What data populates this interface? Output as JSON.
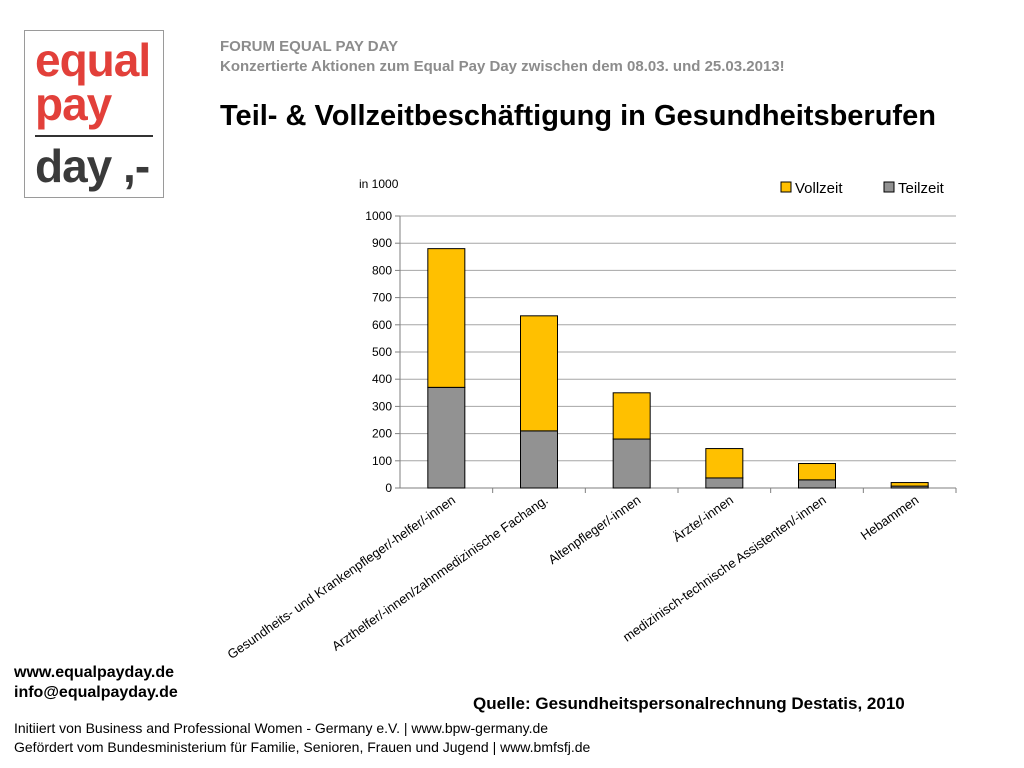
{
  "logo": {
    "line1": "equal",
    "line2": "pay",
    "line3": "day ,-"
  },
  "header": {
    "org": "FORUM EQUAL PAY DAY",
    "campaign": "Konzertierte Aktionen zum Equal Pay Day zwischen dem 08.03. und 25.03.2013!",
    "title": "Teil- & Vollzeitbeschäftigung in Gesundheitsberufen"
  },
  "chart_data": {
    "type": "bar",
    "stacked": true,
    "unit_label": "in 1000",
    "categories": [
      "Gesundheits- und Krankenpfleger/-helfer/-innen",
      "Arzthelfer/-innen/zahnmedizinische Fachang.",
      "Altenpfleger/-innen",
      "Ärzte/-innen",
      "medizinisch-technische Assistenten/-innen",
      "Hebammen"
    ],
    "series": [
      {
        "name": "Teilzeit",
        "values": [
          370,
          210,
          180,
          37,
          30,
          7
        ]
      },
      {
        "name": "Vollzeit",
        "values": [
          510,
          423,
          170,
          108,
          60,
          13
        ]
      }
    ],
    "legend_order": [
      "Vollzeit",
      "Teilzeit"
    ],
    "ylim": [
      0,
      1000
    ],
    "yticks": [
      0,
      100,
      200,
      300,
      400,
      500,
      600,
      700,
      800,
      900,
      1000
    ],
    "grid": true,
    "legend": "top-right",
    "colors": {
      "Vollzeit": "#FFC000",
      "Teilzeit": "#929292"
    }
  },
  "footer": {
    "website": "www.equalpayday.de",
    "email": "info@equalpayday.de",
    "source": "Quelle: Gesundheitspersonalrechnung Destatis, 2010",
    "credit1": "Initiiert von Business and Professional Women - Germany e.V. |  www.bpw-germany.de",
    "credit2": "Gefördert vom Bundesministerium für Familie, Senioren, Frauen und Jugend  |  www.bmfsfj.de"
  }
}
